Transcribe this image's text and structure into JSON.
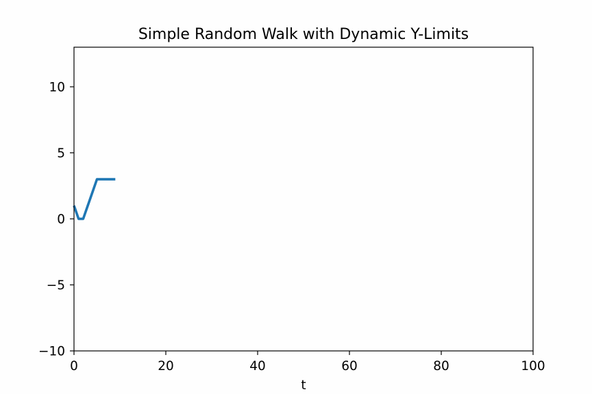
{
  "chart_data": {
    "type": "line",
    "title": "Simple Random Walk with Dynamic Y-Limits",
    "xlabel": "t",
    "ylabel": "",
    "xlim": [
      0,
      100
    ],
    "ylim": [
      -10,
      13
    ],
    "x_ticks": [
      0,
      20,
      40,
      60,
      80,
      100
    ],
    "y_ticks": [
      -10,
      -5,
      0,
      5,
      10
    ],
    "x_tick_labels": [
      "0",
      "20",
      "40",
      "60",
      "80",
      "100"
    ],
    "y_tick_labels": [
      "−10",
      "−5",
      "0",
      "5",
      "10"
    ],
    "grid": false,
    "series": [
      {
        "color": "#1f77b4",
        "x": [
          0,
          1,
          2,
          3,
          4,
          5,
          6,
          7,
          8,
          9
        ],
        "y": [
          1,
          0,
          0,
          1,
          2,
          3,
          3,
          3,
          3,
          3
        ]
      }
    ]
  },
  "colors": {
    "background": "#fefefe",
    "axes_background": "#fefefe",
    "spine": "#000000"
  }
}
